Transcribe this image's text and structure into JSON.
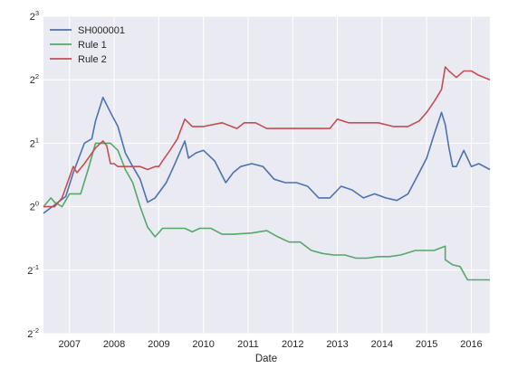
{
  "chart_data": {
    "type": "line",
    "title": "",
    "xlabel": "Date",
    "ylabel": "",
    "yscale": "log2",
    "ylim": [
      0.25,
      8
    ],
    "y_ticks": [
      {
        "base": "2",
        "exp": "-2",
        "value": 0.25
      },
      {
        "base": "2",
        "exp": "-1",
        "value": 0.5
      },
      {
        "base": "2",
        "exp": "0",
        "value": 1
      },
      {
        "base": "2",
        "exp": "1",
        "value": 2
      },
      {
        "base": "2",
        "exp": "2",
        "value": 4
      },
      {
        "base": "2",
        "exp": "3",
        "value": 8
      }
    ],
    "xlim": [
      "2006-06",
      "2016-06"
    ],
    "x_ticks": [
      "2007",
      "2008",
      "2009",
      "2010",
      "2011",
      "2012",
      "2013",
      "2014",
      "2015",
      "2016"
    ],
    "grid": true,
    "legend_position": "top-left",
    "series": [
      {
        "name": "SH000001",
        "color": "#4c72b0",
        "x": [
          "2006-06",
          "2006-09",
          "2006-12",
          "2007-02",
          "2007-05",
          "2007-07",
          "2007-08",
          "2007-10",
          "2007-12",
          "2008-02",
          "2008-04",
          "2008-06",
          "2008-08",
          "2008-10",
          "2008-12",
          "2009-03",
          "2009-05",
          "2009-08",
          "2009-09",
          "2009-11",
          "2010-01",
          "2010-04",
          "2010-07",
          "2010-09",
          "2010-11",
          "2011-02",
          "2011-05",
          "2011-08",
          "2011-11",
          "2012-02",
          "2012-05",
          "2012-08",
          "2012-11",
          "2013-02",
          "2013-05",
          "2013-08",
          "2013-11",
          "2014-02",
          "2014-05",
          "2014-08",
          "2014-11",
          "2015-01",
          "2015-03",
          "2015-05",
          "2015-06",
          "2015-07",
          "2015-08",
          "2015-09",
          "2015-11",
          "2016-01",
          "2016-03",
          "2016-06"
        ],
        "values": [
          0.93,
          1.02,
          1.12,
          1.45,
          2.0,
          2.1,
          2.55,
          3.3,
          2.8,
          2.4,
          1.8,
          1.55,
          1.35,
          1.05,
          1.1,
          1.3,
          1.55,
          2.05,
          1.7,
          1.8,
          1.85,
          1.65,
          1.3,
          1.45,
          1.55,
          1.6,
          1.55,
          1.35,
          1.3,
          1.3,
          1.25,
          1.1,
          1.1,
          1.25,
          1.2,
          1.1,
          1.15,
          1.1,
          1.07,
          1.15,
          1.45,
          1.7,
          2.2,
          2.8,
          2.45,
          1.9,
          1.55,
          1.55,
          1.85,
          1.55,
          1.6,
          1.5
        ]
      },
      {
        "name": "Rule 1",
        "color": "#55a868",
        "x": [
          "2006-06",
          "2006-08",
          "2006-09",
          "2006-11",
          "2007-01",
          "2007-04",
          "2007-06",
          "2007-08",
          "2007-10",
          "2007-12",
          "2008-02",
          "2008-04",
          "2008-06",
          "2008-08",
          "2008-10",
          "2008-12",
          "2009-02",
          "2009-08",
          "2009-10",
          "2009-12",
          "2010-03",
          "2010-06",
          "2010-09",
          "2011-02",
          "2011-06",
          "2011-09",
          "2011-12",
          "2012-03",
          "2012-06",
          "2012-09",
          "2012-12",
          "2013-03",
          "2013-06",
          "2013-09",
          "2013-12",
          "2014-03",
          "2014-06",
          "2014-10",
          "2015-01",
          "2015-03",
          "2015-06",
          "2015-06",
          "2015-08",
          "2015-10",
          "2015-12",
          "2016-02",
          "2016-04",
          "2016-06"
        ],
        "values": [
          1.0,
          1.1,
          1.05,
          1.0,
          1.15,
          1.15,
          1.5,
          2.0,
          2.0,
          2.0,
          1.85,
          1.5,
          1.3,
          1.0,
          0.8,
          0.72,
          0.79,
          0.79,
          0.76,
          0.79,
          0.79,
          0.74,
          0.74,
          0.75,
          0.77,
          0.72,
          0.68,
          0.68,
          0.62,
          0.6,
          0.59,
          0.59,
          0.57,
          0.57,
          0.58,
          0.58,
          0.59,
          0.62,
          0.62,
          0.62,
          0.65,
          0.56,
          0.53,
          0.52,
          0.45,
          0.45,
          0.45,
          0.45
        ]
      },
      {
        "name": "Rule 2",
        "color": "#c44e52",
        "x": [
          "2006-06",
          "2006-09",
          "2006-11",
          "2007-02",
          "2007-03",
          "2007-05",
          "2007-08",
          "2007-10",
          "2007-11",
          "2007-12",
          "2008-01",
          "2008-02",
          "2008-06",
          "2008-08",
          "2008-10",
          "2008-12",
          "2009-01",
          "2009-02",
          "2009-04",
          "2009-06",
          "2009-08",
          "2009-10",
          "2010-01",
          "2010-06",
          "2010-10",
          "2010-12",
          "2011-03",
          "2011-06",
          "2011-09",
          "2012-02",
          "2012-06",
          "2012-09",
          "2012-11",
          "2013-01",
          "2013-04",
          "2013-08",
          "2013-12",
          "2014-04",
          "2014-08",
          "2014-11",
          "2015-01",
          "2015-03",
          "2015-05",
          "2015-06",
          "2015-07",
          "2015-09",
          "2015-11",
          "2016-01",
          "2016-03",
          "2016-06"
        ],
        "values": [
          1.0,
          1.0,
          1.1,
          1.55,
          1.45,
          1.6,
          1.9,
          2.05,
          1.95,
          1.6,
          1.6,
          1.55,
          1.55,
          1.55,
          1.5,
          1.55,
          1.55,
          1.65,
          1.85,
          2.1,
          2.6,
          2.4,
          2.4,
          2.5,
          2.35,
          2.5,
          2.5,
          2.35,
          2.35,
          2.35,
          2.35,
          2.35,
          2.35,
          2.6,
          2.5,
          2.5,
          2.5,
          2.4,
          2.4,
          2.55,
          2.8,
          3.15,
          3.6,
          4.6,
          4.4,
          4.1,
          4.4,
          4.4,
          4.2,
          4.0
        ]
      }
    ]
  }
}
